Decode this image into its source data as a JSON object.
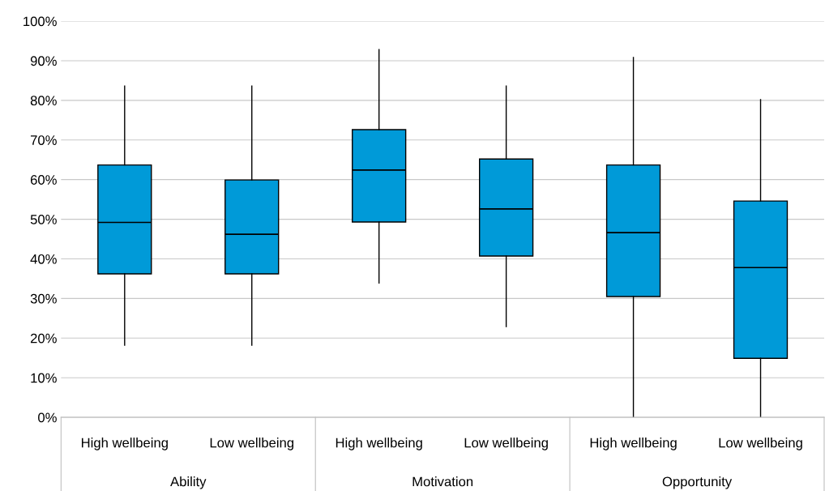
{
  "chart_data": {
    "type": "box",
    "categories": [
      "High wellbeing",
      "Low wellbeing",
      "High wellbeing",
      "Low wellbeing",
      "High wellbeing",
      "Low wellbeing"
    ],
    "boxes": [
      {
        "low": 18.2,
        "q1": 36.2,
        "median": 49.2,
        "q3": 63.7,
        "high": 83.6
      },
      {
        "low": 18.2,
        "q1": 36.2,
        "median": 46.2,
        "q3": 59.9,
        "high": 83.6
      },
      {
        "low": 33.9,
        "q1": 49.3,
        "median": 62.4,
        "q3": 72.6,
        "high": 92.8
      },
      {
        "low": 22.9,
        "q1": 40.7,
        "median": 52.6,
        "q3": 65.2,
        "high": 83.6
      },
      {
        "low": 0,
        "q1": 30.5,
        "median": 46.6,
        "q3": 63.7,
        "high": 90.8
      },
      {
        "low": 0,
        "q1": 14.9,
        "median": 37.8,
        "q3": 54.6,
        "high": 80.2
      }
    ],
    "color": "#009ad8",
    "annotations": [
      "Ability",
      "Motivation",
      "Opportunity"
    ],
    "ylim": [
      0,
      100
    ],
    "yticks": [
      {
        "value": 0,
        "label": "0%"
      },
      {
        "value": 10,
        "label": "10%"
      },
      {
        "value": 20,
        "label": "20%"
      },
      {
        "value": 30,
        "label": "30%"
      },
      {
        "value": 40,
        "label": "40%"
      },
      {
        "value": 50,
        "label": "50%"
      },
      {
        "value": 60,
        "label": "60%"
      },
      {
        "value": 70,
        "label": "70%"
      },
      {
        "value": 80,
        "label": "80%"
      },
      {
        "value": 90,
        "label": "90%"
      },
      {
        "value": 100,
        "label": "100%"
      }
    ],
    "grid": "y",
    "legend": false
  }
}
